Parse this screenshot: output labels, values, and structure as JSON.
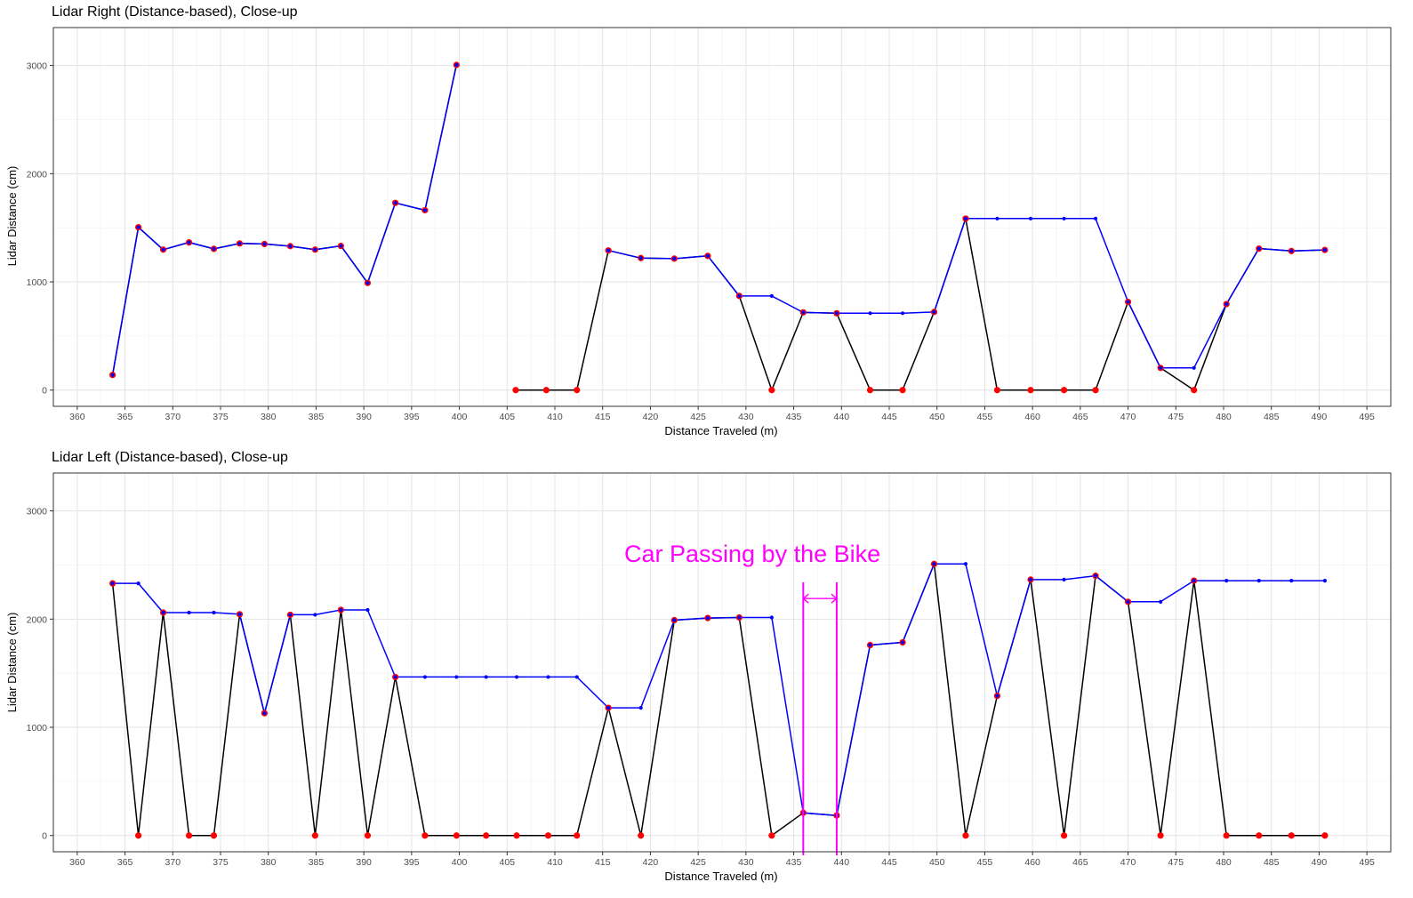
{
  "chart_data": [
    {
      "type": "line",
      "title": "Lidar Right (Distance-based), Close-up",
      "xlabel": "Distance Traveled (m)",
      "ylabel": "Lidar Distance (cm)",
      "xlim": [
        357.5,
        497.5
      ],
      "ylim": [
        -150,
        3350
      ],
      "x_ticks": [
        360,
        365,
        370,
        375,
        380,
        385,
        390,
        395,
        400,
        405,
        410,
        415,
        420,
        425,
        430,
        435,
        440,
        445,
        450,
        455,
        460,
        465,
        470,
        475,
        480,
        485,
        490,
        495
      ],
      "y_ticks": [
        0,
        1000,
        2000,
        3000
      ],
      "grid": true,
      "legend": "none",
      "colors": {
        "raw": "#000000",
        "filled": "#0000ff",
        "points": "#ff0000"
      },
      "series": [
        {
          "role": "raw",
          "segments": [
            {
              "x": [
                363.7,
                366.4,
                369.0,
                371.7,
                374.3,
                377.0,
                379.6,
                382.3,
                384.9,
                387.6,
                390.4,
                393.3,
                396.4,
                399.7
              ],
              "y": [
                140,
                1505,
                1298,
                1365,
                1305,
                1355,
                1350,
                1330,
                1298,
                1332,
                990,
                1730,
                1662,
                3005
              ]
            },
            {
              "x": [
                405.9,
                409.1,
                412.3,
                415.6,
                419.0,
                422.5,
                426.0,
                429.3,
                432.7,
                436.0,
                439.5,
                443.0,
                446.4,
                449.7,
                453.0,
                456.3,
                459.8,
                463.3,
                466.6,
                470.0,
                473.4,
                476.9,
                480.3,
                483.7,
                487.1,
                490.6
              ],
              "y": [
                0,
                0,
                0,
                1290,
                1220,
                1215,
                1240,
                870,
                0,
                718,
                710,
                0,
                0,
                722,
                1585,
                0,
                0,
                0,
                0,
                815,
                205,
                0,
                795,
                1308,
                1285,
                1295
              ]
            }
          ]
        },
        {
          "role": "filled",
          "segments": [
            {
              "x": [
                363.7,
                366.4,
                369.0,
                371.7,
                374.3,
                377.0,
                379.6,
                382.3,
                384.9,
                387.6,
                390.4,
                393.3,
                396.4,
                399.7
              ],
              "y": [
                140,
                1505,
                1298,
                1365,
                1305,
                1355,
                1350,
                1330,
                1298,
                1332,
                990,
                1730,
                1662,
                3005
              ]
            },
            {
              "x": [
                415.6,
                419.0,
                422.5,
                426.0,
                429.3,
                432.7,
                436.0,
                439.5,
                443.0,
                446.4,
                449.7,
                453.0,
                456.3,
                459.8,
                463.3,
                466.6,
                470.0,
                473.4,
                476.9,
                480.3,
                483.7,
                487.1,
                490.6
              ],
              "y": [
                1290,
                1220,
                1215,
                1240,
                870,
                870,
                718,
                710,
                710,
                710,
                722,
                1585,
                1585,
                1585,
                1585,
                1585,
                815,
                205,
                205,
                795,
                1308,
                1285,
                1295
              ]
            }
          ]
        }
      ],
      "points": {
        "x": [
          363.7,
          366.4,
          369.0,
          371.7,
          374.3,
          377.0,
          379.6,
          382.3,
          384.9,
          387.6,
          390.4,
          393.3,
          396.4,
          399.7,
          405.9,
          409.1,
          412.3,
          415.6,
          419.0,
          422.5,
          426.0,
          429.3,
          432.7,
          436.0,
          439.5,
          443.0,
          446.4,
          449.7,
          453.0,
          456.3,
          459.8,
          463.3,
          466.6,
          470.0,
          473.4,
          476.9,
          480.3,
          483.7,
          487.1,
          490.6
        ],
        "y": [
          140,
          1505,
          1298,
          1365,
          1305,
          1355,
          1350,
          1330,
          1298,
          1332,
          990,
          1730,
          1662,
          3005,
          0,
          0,
          0,
          1290,
          1220,
          1215,
          1240,
          870,
          0,
          718,
          710,
          0,
          0,
          722,
          1585,
          0,
          0,
          0,
          0,
          815,
          205,
          0,
          795,
          1308,
          1285,
          1295
        ]
      }
    },
    {
      "type": "line",
      "title": "Lidar Left (Distance-based), Close-up",
      "xlabel": "Distance Traveled (m)",
      "ylabel": "Lidar Distance (cm)",
      "xlim": [
        357.5,
        497.5
      ],
      "ylim": [
        -150,
        3350
      ],
      "x_ticks": [
        360,
        365,
        370,
        375,
        380,
        385,
        390,
        395,
        400,
        405,
        410,
        415,
        420,
        425,
        430,
        435,
        440,
        445,
        450,
        455,
        460,
        465,
        470,
        475,
        480,
        485,
        490,
        495
      ],
      "y_ticks": [
        0,
        1000,
        2000,
        3000
      ],
      "grid": true,
      "legend": "none",
      "colors": {
        "raw": "#000000",
        "filled": "#0000ff",
        "points": "#ff0000",
        "annotation": "#ff00ff"
      },
      "series": [
        {
          "role": "raw",
          "segments": [
            {
              "x": [
                363.7,
                366.4,
                369.0,
                371.7,
                374.3,
                377.0,
                379.6,
                382.3,
                384.9,
                387.6,
                390.4,
                393.3,
                396.4,
                399.7,
                402.8,
                406.0,
                409.3,
                412.3,
                415.6,
                419.0,
                422.5,
                426.0,
                429.3,
                432.7,
                436.0,
                439.5,
                443.0,
                446.4,
                449.7,
                453.0,
                456.3,
                459.8,
                463.3,
                466.6,
                470.0,
                473.4,
                476.9,
                480.3,
                483.7,
                487.1,
                490.6
              ],
              "y": [
                2330,
                0,
                2060,
                0,
                0,
                2045,
                1130,
                2040,
                0,
                2085,
                0,
                1465,
                0,
                0,
                0,
                0,
                0,
                0,
                1180,
                0,
                1990,
                2010,
                2015,
                0,
                210,
                185,
                1760,
                1785,
                2510,
                0,
                1290,
                2365,
                0,
                2400,
                2160,
                0,
                2355,
                0,
                0,
                0,
                0
              ]
            }
          ]
        },
        {
          "role": "filled",
          "segments": [
            {
              "x": [
                363.7,
                366.4,
                369.0,
                371.7,
                374.3,
                377.0,
                379.6,
                382.3,
                384.9,
                387.6,
                390.4,
                393.3,
                396.4,
                399.7,
                402.8,
                406.0,
                409.3,
                412.3,
                415.6,
                419.0,
                422.5,
                426.0,
                429.3,
                432.7,
                436.0,
                439.5,
                443.0,
                446.4,
                449.7,
                453.0,
                456.3,
                459.8,
                463.3,
                466.6,
                470.0,
                473.4,
                476.9,
                480.3,
                483.7,
                487.1,
                490.6
              ],
              "y": [
                2330,
                2330,
                2060,
                2060,
                2060,
                2045,
                1130,
                2040,
                2040,
                2085,
                2085,
                1465,
                1465,
                1465,
                1465,
                1465,
                1465,
                1465,
                1180,
                1180,
                1990,
                2010,
                2015,
                2015,
                210,
                185,
                1760,
                1785,
                2510,
                2510,
                1290,
                2365,
                2365,
                2400,
                2160,
                2160,
                2355,
                2355,
                2355,
                2355,
                2355
              ]
            }
          ]
        }
      ],
      "points": {
        "x": [
          363.7,
          366.4,
          369.0,
          371.7,
          374.3,
          377.0,
          379.6,
          382.3,
          384.9,
          387.6,
          390.4,
          393.3,
          396.4,
          399.7,
          402.8,
          406.0,
          409.3,
          412.3,
          415.6,
          419.0,
          422.5,
          426.0,
          429.3,
          432.7,
          436.0,
          439.5,
          443.0,
          446.4,
          449.7,
          453.0,
          456.3,
          459.8,
          463.3,
          466.6,
          470.0,
          473.4,
          476.9,
          480.3,
          483.7,
          487.1,
          490.6
        ],
        "y": [
          2330,
          0,
          2060,
          0,
          0,
          2045,
          1130,
          2040,
          0,
          2085,
          0,
          1465,
          0,
          0,
          0,
          0,
          0,
          0,
          1180,
          0,
          1990,
          2010,
          2015,
          0,
          210,
          185,
          1760,
          1785,
          2510,
          0,
          1290,
          2365,
          0,
          2400,
          2160,
          0,
          2355,
          0,
          0,
          0,
          0
        ]
      },
      "annotation": {
        "text": "Car Passing by the Bike",
        "x_start": 436.0,
        "x_end": 439.5,
        "text_x": 437.0,
        "text_y": 2560,
        "arrow_y": 2190,
        "line_y_top": 2340
      }
    }
  ]
}
